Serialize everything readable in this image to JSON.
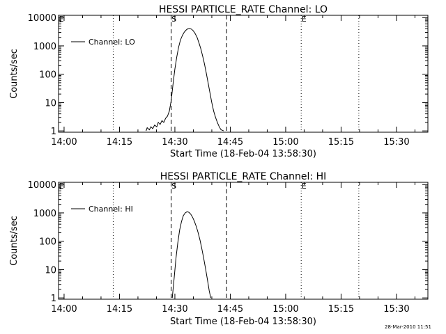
{
  "timestamp": "28-Mar-2010 11:51",
  "chart_data": [
    {
      "type": "line",
      "scale_y": "log",
      "title": "HESSI PARTICLE_RATE Channel: LO",
      "xlabel": "Start Time (18-Feb-04 13:58:30)",
      "ylabel": "Counts/sec",
      "legend": {
        "label": "Channel: LO",
        "placement": "top-left"
      },
      "xlim_minutes": [
        0,
        100
      ],
      "ylim": [
        0.9,
        12000
      ],
      "x_ticks": [
        {
          "t": 1.5,
          "label": "14:00"
        },
        {
          "t": 16.5,
          "label": "14:15"
        },
        {
          "t": 31.5,
          "label": "14:30"
        },
        {
          "t": 46.5,
          "label": "14:45"
        },
        {
          "t": 61.5,
          "label": "15:00"
        },
        {
          "t": 76.5,
          "label": "15:15"
        },
        {
          "t": 91.5,
          "label": "15:30"
        }
      ],
      "y_ticks": [
        {
          "v": 1,
          "label": "1"
        },
        {
          "v": 10,
          "label": "10"
        },
        {
          "v": 100,
          "label": "100"
        },
        {
          "v": 1000,
          "label": "1000"
        },
        {
          "v": 10000,
          "label": "10000"
        }
      ],
      "markers": [
        {
          "t": 0.0,
          "label": "E",
          "style": "dotted"
        },
        {
          "t": 14.8,
          "label": "",
          "style": "dotted"
        },
        {
          "t": 30.5,
          "label": "S",
          "style": "dashed"
        },
        {
          "t": 45.5,
          "label": "",
          "style": "dashed"
        },
        {
          "t": 65.7,
          "label": "E",
          "style": "dotted"
        },
        {
          "t": 81.3,
          "label": "",
          "style": "dotted"
        }
      ],
      "series": [
        {
          "name": "Channel: LO",
          "points": [
            [
              23.7,
              1.0
            ],
            [
              24.0,
              1.3
            ],
            [
              24.6,
              1.1
            ],
            [
              25.0,
              1.4
            ],
            [
              25.5,
              1.2
            ],
            [
              26.0,
              1.6
            ],
            [
              26.6,
              1.4
            ],
            [
              27.0,
              2.0
            ],
            [
              27.5,
              1.7
            ],
            [
              28.0,
              2.3
            ],
            [
              28.5,
              2.0
            ],
            [
              29.0,
              2.8
            ],
            [
              29.5,
              3.3
            ],
            [
              30.0,
              5.0
            ],
            [
              30.5,
              12
            ],
            [
              31.0,
              45
            ],
            [
              31.5,
              150
            ],
            [
              32.0,
              400
            ],
            [
              32.5,
              900
            ],
            [
              33.0,
              1600
            ],
            [
              33.5,
              2300
            ],
            [
              34.0,
              3000
            ],
            [
              34.5,
              3600
            ],
            [
              35.0,
              4000
            ],
            [
              35.5,
              4100
            ],
            [
              36.0,
              3900
            ],
            [
              36.5,
              3400
            ],
            [
              37.0,
              2700
            ],
            [
              37.5,
              2000
            ],
            [
              38.0,
              1300
            ],
            [
              38.5,
              800
            ],
            [
              39.0,
              450
            ],
            [
              39.5,
              230
            ],
            [
              40.0,
              110
            ],
            [
              40.5,
              50
            ],
            [
              41.0,
              22
            ],
            [
              41.5,
              10
            ],
            [
              42.0,
              5
            ],
            [
              42.5,
              3
            ],
            [
              43.0,
              2
            ],
            [
              43.5,
              1.4
            ],
            [
              44.0,
              1.1
            ],
            [
              44.7,
              1.0
            ]
          ]
        }
      ]
    },
    {
      "type": "line",
      "scale_y": "log",
      "title": "HESSI PARTICLE_RATE Channel: HI",
      "xlabel": "Start Time (18-Feb-04 13:58:30)",
      "ylabel": "Counts/sec",
      "legend": {
        "label": "Channel: HI",
        "placement": "top-left"
      },
      "xlim_minutes": [
        0,
        100
      ],
      "ylim": [
        0.9,
        12000
      ],
      "x_ticks": [
        {
          "t": 1.5,
          "label": "14:00"
        },
        {
          "t": 16.5,
          "label": "14:15"
        },
        {
          "t": 31.5,
          "label": "14:30"
        },
        {
          "t": 46.5,
          "label": "14:45"
        },
        {
          "t": 61.5,
          "label": "15:00"
        },
        {
          "t": 76.5,
          "label": "15:15"
        },
        {
          "t": 91.5,
          "label": "15:30"
        }
      ],
      "y_ticks": [
        {
          "v": 1,
          "label": "1"
        },
        {
          "v": 10,
          "label": "10"
        },
        {
          "v": 100,
          "label": "100"
        },
        {
          "v": 1000,
          "label": "1000"
        },
        {
          "v": 10000,
          "label": "10000"
        }
      ],
      "markers": [
        {
          "t": 0.0,
          "label": "E",
          "style": "dotted"
        },
        {
          "t": 14.8,
          "label": "",
          "style": "dotted"
        },
        {
          "t": 30.5,
          "label": "S",
          "style": "dashed"
        },
        {
          "t": 45.5,
          "label": "",
          "style": "dashed"
        },
        {
          "t": 65.7,
          "label": "E",
          "style": "dotted"
        },
        {
          "t": 81.3,
          "label": "",
          "style": "dotted"
        }
      ],
      "series": [
        {
          "name": "Channel: HI",
          "points": [
            [
              30.8,
              1.0
            ],
            [
              31.3,
              5
            ],
            [
              31.8,
              25
            ],
            [
              32.3,
              90
            ],
            [
              32.8,
              250
            ],
            [
              33.3,
              500
            ],
            [
              33.8,
              800
            ],
            [
              34.3,
              1000
            ],
            [
              34.8,
              1100
            ],
            [
              35.3,
              1050
            ],
            [
              35.8,
              900
            ],
            [
              36.3,
              700
            ],
            [
              36.8,
              500
            ],
            [
              37.3,
              330
            ],
            [
              37.8,
              200
            ],
            [
              38.3,
              110
            ],
            [
              38.8,
              55
            ],
            [
              39.3,
              25
            ],
            [
              39.8,
              11
            ],
            [
              40.3,
              4.5
            ],
            [
              40.8,
              1.8
            ],
            [
              41.2,
              1.0
            ]
          ]
        }
      ]
    }
  ]
}
